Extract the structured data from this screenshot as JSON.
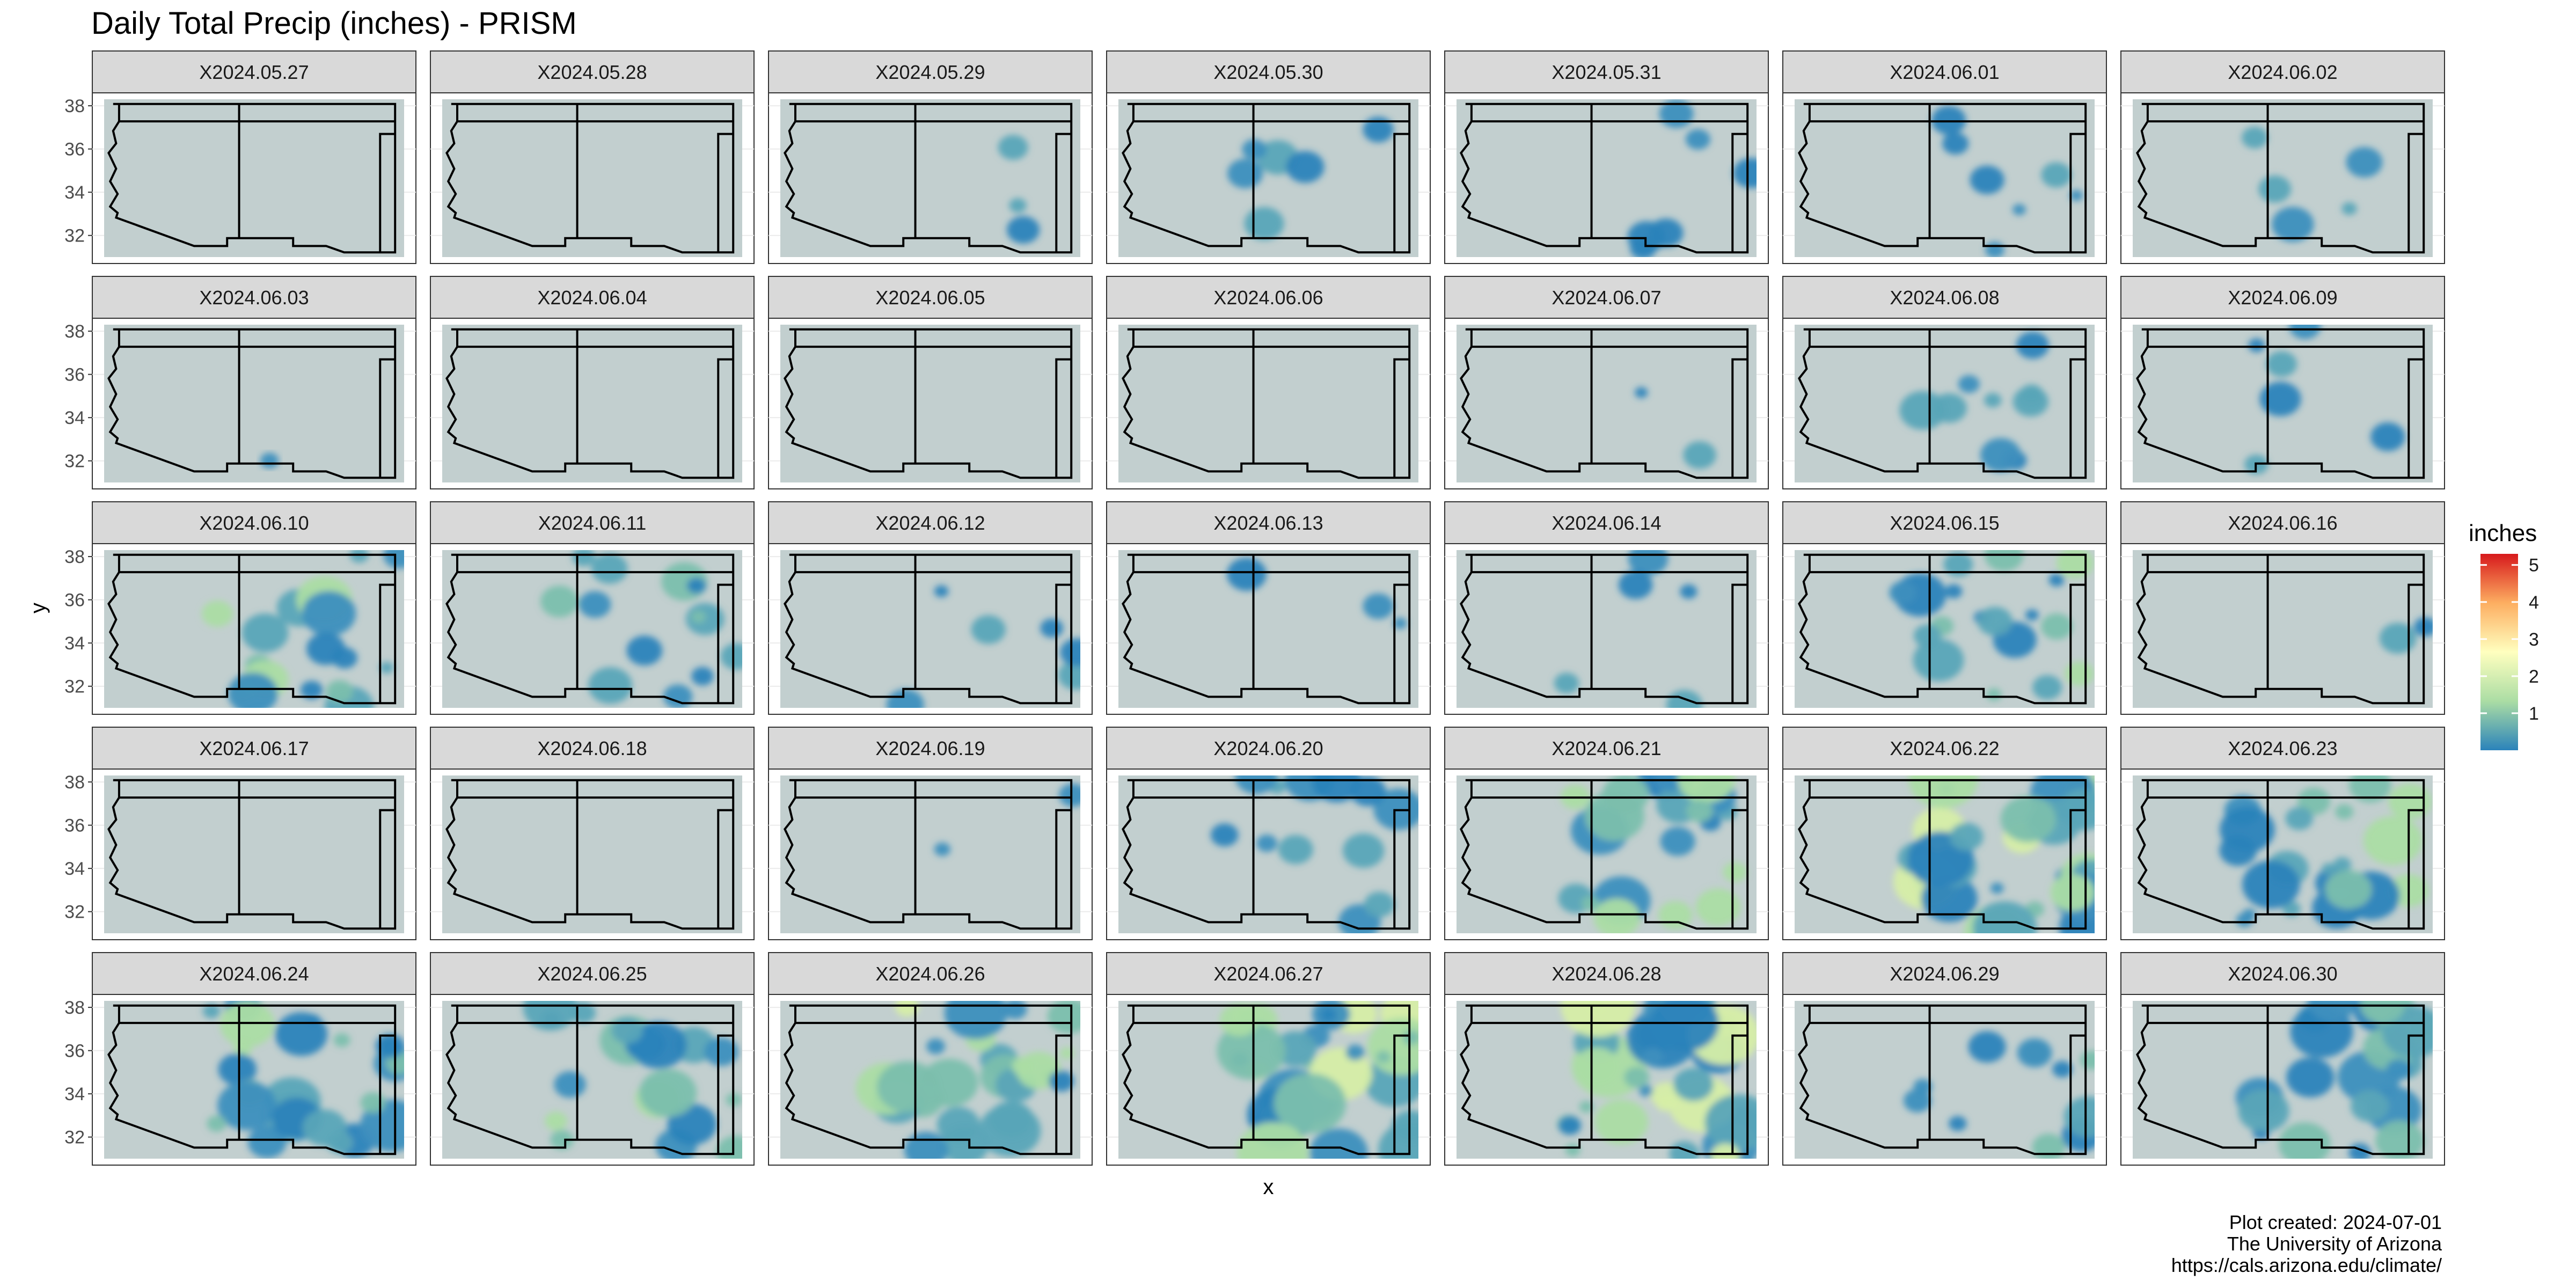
{
  "chart_data": {
    "type": "heatmap",
    "title": "Daily Total Precip (inches) - PRISM",
    "xlabel": "x",
    "ylabel": "y",
    "y_ticks": [
      32,
      34,
      36,
      38
    ],
    "ylim": [
      31,
      38.3
    ],
    "legend": {
      "title": "inches",
      "position": "right",
      "ticks": [
        1,
        2,
        3,
        4,
        5
      ],
      "range": [
        0,
        5.3
      ],
      "colors": [
        "#2B83BA",
        "#ABDDA4",
        "#FFFFBF",
        "#FDAE61",
        "#D7191C"
      ]
    },
    "colors": {
      "land": "#C2CFCF",
      "strip": "#D9D9D9",
      "border": "#000000"
    },
    "panels": [
      {
        "label": "X2024.05.27",
        "coverage": 0.0
      },
      {
        "label": "X2024.05.28",
        "coverage": 0.0
      },
      {
        "label": "X2024.05.29",
        "coverage": 0.05
      },
      {
        "label": "X2024.05.30",
        "coverage": 0.1
      },
      {
        "label": "X2024.05.31",
        "coverage": 0.1
      },
      {
        "label": "X2024.06.01",
        "coverage": 0.12
      },
      {
        "label": "X2024.06.02",
        "coverage": 0.08
      },
      {
        "label": "X2024.06.03",
        "coverage": 0.02
      },
      {
        "label": "X2024.06.04",
        "coverage": 0.0
      },
      {
        "label": "X2024.06.05",
        "coverage": 0.0
      },
      {
        "label": "X2024.06.06",
        "coverage": 0.0
      },
      {
        "label": "X2024.06.07",
        "coverage": 0.03
      },
      {
        "label": "X2024.06.08",
        "coverage": 0.15
      },
      {
        "label": "X2024.06.09",
        "coverage": 0.1
      },
      {
        "label": "X2024.06.10",
        "coverage": 0.3
      },
      {
        "label": "X2024.06.11",
        "coverage": 0.22
      },
      {
        "label": "X2024.06.12",
        "coverage": 0.1
      },
      {
        "label": "X2024.06.13",
        "coverage": 0.05
      },
      {
        "label": "X2024.06.14",
        "coverage": 0.08
      },
      {
        "label": "X2024.06.15",
        "coverage": 0.3
      },
      {
        "label": "X2024.06.16",
        "coverage": 0.04
      },
      {
        "label": "X2024.06.17",
        "coverage": 0.0
      },
      {
        "label": "X2024.06.18",
        "coverage": 0.0
      },
      {
        "label": "X2024.06.19",
        "coverage": 0.03
      },
      {
        "label": "X2024.06.20",
        "coverage": 0.2
      },
      {
        "label": "X2024.06.21",
        "coverage": 0.35
      },
      {
        "label": "X2024.06.22",
        "coverage": 0.45
      },
      {
        "label": "X2024.06.23",
        "coverage": 0.35
      },
      {
        "label": "X2024.06.24",
        "coverage": 0.4
      },
      {
        "label": "X2024.06.25",
        "coverage": 0.3
      },
      {
        "label": "X2024.06.26",
        "coverage": 0.4
      },
      {
        "label": "X2024.06.27",
        "coverage": 0.5
      },
      {
        "label": "X2024.06.28",
        "coverage": 0.55
      },
      {
        "label": "X2024.06.29",
        "coverage": 0.18
      },
      {
        "label": "X2024.06.30",
        "coverage": 0.35
      }
    ]
  },
  "caption": {
    "line1": "Plot created: 2024-07-01",
    "line2": "The University of Arizona",
    "line3": "https://cals.arizona.edu/climate/"
  }
}
